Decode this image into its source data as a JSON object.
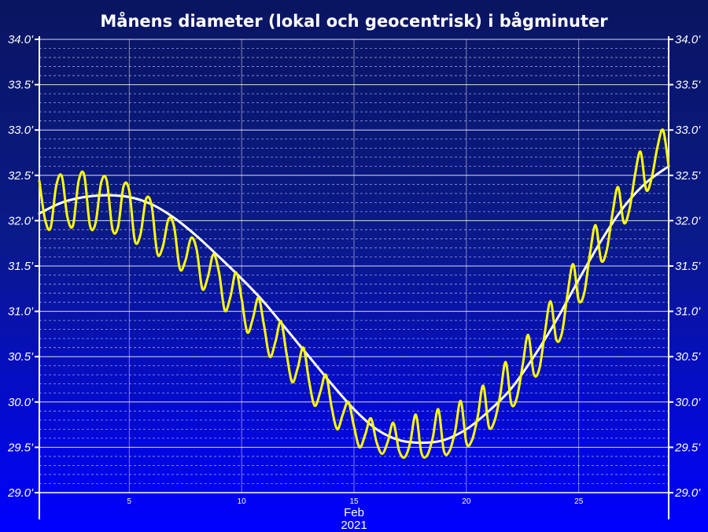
{
  "chart_data": {
    "type": "line",
    "title": "Månens diameter (lokal och geocentrisk) i bågminuter",
    "x_unit_labels": [
      "Feb",
      "2021"
    ],
    "x_range": [
      1,
      29
    ],
    "x_ticks": [
      5,
      10,
      15,
      20,
      25
    ],
    "ylim": [
      29.0,
      34.0
    ],
    "y_ticks": [
      29.0,
      29.5,
      30.0,
      30.5,
      31.0,
      31.5,
      32.0,
      32.5,
      33.0,
      33.5,
      34.0
    ],
    "y_tick_labels": [
      "29.0'",
      "29.5'",
      "30.0'",
      "30.5'",
      "31.0'",
      "31.5'",
      "32.0'",
      "32.5'",
      "33.0'",
      "33.5'",
      "34.0'"
    ],
    "y_minor_step": 0.1,
    "grid": true,
    "series": [
      {
        "color": "#ffffff",
        "x": [
          1,
          2,
          3,
          4,
          5,
          6,
          7,
          8,
          9,
          10,
          11,
          12,
          13,
          14,
          15,
          16,
          17,
          18,
          19,
          20,
          21,
          22,
          23,
          24,
          25,
          26,
          27,
          28,
          29
        ],
        "values": [
          32.08,
          32.2,
          32.26,
          32.28,
          32.26,
          32.18,
          32.03,
          31.83,
          31.6,
          31.36,
          31.1,
          30.8,
          30.5,
          30.2,
          29.92,
          29.7,
          29.58,
          29.55,
          29.58,
          29.7,
          29.9,
          30.15,
          30.5,
          30.9,
          31.35,
          31.78,
          32.15,
          32.42,
          32.6
        ]
      },
      {
        "color": "#ffff00",
        "x": [
          1.0,
          1.25,
          1.5,
          1.75,
          2.0,
          2.25,
          2.5,
          2.75,
          3.0,
          3.25,
          3.5,
          3.75,
          4.0,
          4.25,
          4.5,
          4.75,
          5.0,
          5.25,
          5.5,
          5.75,
          6.0,
          6.25,
          6.5,
          6.75,
          7.0,
          7.25,
          7.5,
          7.75,
          8.0,
          8.25,
          8.5,
          8.75,
          9.0,
          9.25,
          9.5,
          9.75,
          10.0,
          10.25,
          10.5,
          10.75,
          11.0,
          11.25,
          11.5,
          11.75,
          12.0,
          12.25,
          12.5,
          12.75,
          13.0,
          13.25,
          13.5,
          13.75,
          14.0,
          14.25,
          14.5,
          14.75,
          15.0,
          15.25,
          15.5,
          15.75,
          16.0,
          16.25,
          16.5,
          16.75,
          17.0,
          17.25,
          17.5,
          17.75,
          18.0,
          18.25,
          18.5,
          18.75,
          19.0,
          19.25,
          19.5,
          19.75,
          20.0,
          20.25,
          20.5,
          20.75,
          21.0,
          21.25,
          21.5,
          21.75,
          22.0,
          22.25,
          22.5,
          22.75,
          23.0,
          23.25,
          23.5,
          23.75,
          24.0,
          24.25,
          24.5,
          24.75,
          25.0,
          25.25,
          25.5,
          25.75,
          26.0,
          26.25,
          26.5,
          26.75,
          27.0,
          27.25,
          27.5,
          27.75,
          28.0,
          28.25,
          28.5,
          28.75,
          29.0
        ],
        "values": [
          32.44,
          32.02,
          31.92,
          32.38,
          32.49,
          32.04,
          31.95,
          32.44,
          32.5,
          31.95,
          31.97,
          32.42,
          32.44,
          31.91,
          31.93,
          32.38,
          32.33,
          31.78,
          31.85,
          32.24,
          32.16,
          31.64,
          31.72,
          32.02,
          31.93,
          31.47,
          31.56,
          31.81,
          31.68,
          31.25,
          31.38,
          31.63,
          31.42,
          31.01,
          31.16,
          31.43,
          31.14,
          30.77,
          30.92,
          31.15,
          30.84,
          30.5,
          30.66,
          30.89,
          30.53,
          30.22,
          30.38,
          30.6,
          30.23,
          29.96,
          30.11,
          30.3,
          29.95,
          29.7,
          29.86,
          30.0,
          29.73,
          29.5,
          29.64,
          29.82,
          29.56,
          29.43,
          29.56,
          29.77,
          29.47,
          29.39,
          29.55,
          29.86,
          29.44,
          29.41,
          29.6,
          29.92,
          29.46,
          29.46,
          29.68,
          30.01,
          29.55,
          29.58,
          29.83,
          30.18,
          29.73,
          29.79,
          30.07,
          30.44,
          29.98,
          30.05,
          30.4,
          30.74,
          30.31,
          30.37,
          30.78,
          31.11,
          30.69,
          30.76,
          31.19,
          31.52,
          31.12,
          31.21,
          31.64,
          31.95,
          31.56,
          31.68,
          32.08,
          32.37,
          31.98,
          32.12,
          32.5,
          32.76,
          32.34,
          32.48,
          32.81,
          33.0,
          32.6
        ]
      }
    ]
  }
}
